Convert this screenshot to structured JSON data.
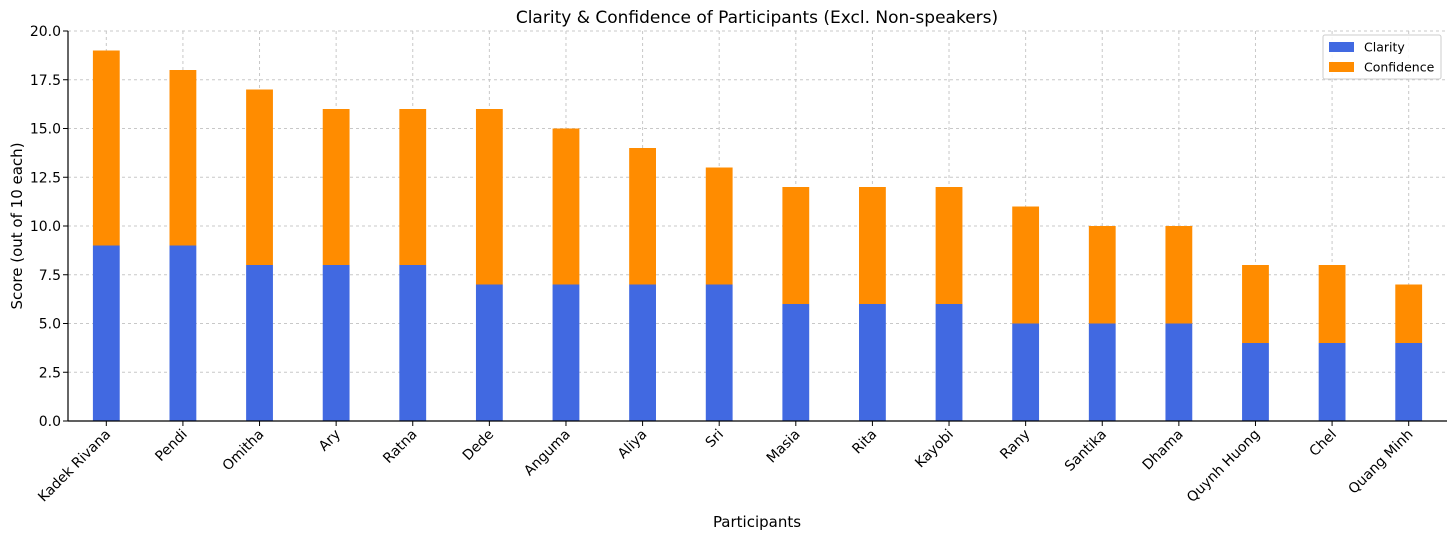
{
  "chart_data": {
    "type": "bar",
    "stacked": true,
    "title": "Clarity & Confidence of Participants (Excl. Non-speakers)",
    "xlabel": "Participants",
    "ylabel": "Score (out of 10 each)",
    "ylim": [
      0,
      20
    ],
    "yticks": [
      "0.0",
      "2.5",
      "5.0",
      "7.5",
      "10.0",
      "12.5",
      "15.0",
      "17.5",
      "20.0"
    ],
    "grid": true,
    "legend_position": "top-right",
    "categories": [
      "Kadek Rivana",
      "Pendi",
      "Omitha",
      "Ary",
      "Ratna",
      "Dede",
      "Anguma",
      "Aliya",
      "Sri",
      "Masia",
      "Rita",
      "Kayobi",
      "Rany",
      "Santika",
      "Dhama",
      "Quynh Huong",
      "Chel",
      "Quang Minh"
    ],
    "series": [
      {
        "name": "Clarity",
        "color": "#4169e1",
        "values": [
          9,
          9,
          8,
          8,
          8,
          7,
          7,
          7,
          7,
          6,
          6,
          6,
          5,
          5,
          5,
          4,
          4,
          4
        ]
      },
      {
        "name": "Confidence",
        "color": "#ff8c00",
        "values": [
          10,
          9,
          9,
          8,
          8,
          9,
          8,
          7,
          6,
          6,
          6,
          6,
          6,
          5,
          5,
          4,
          4,
          3
        ]
      }
    ]
  }
}
